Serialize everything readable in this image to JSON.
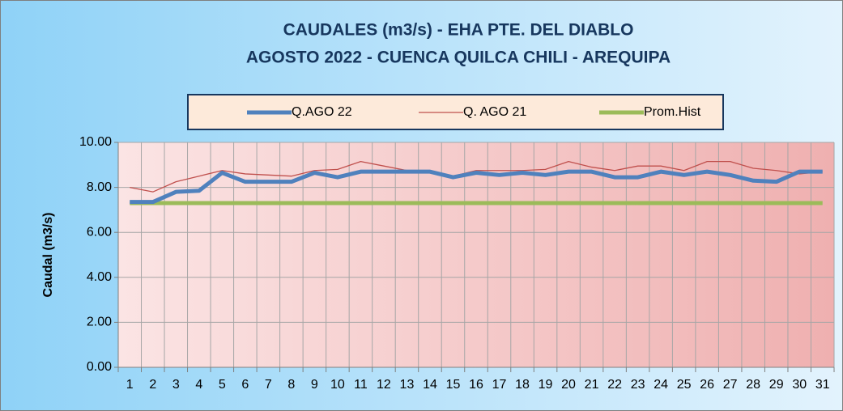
{
  "chart_data": {
    "type": "line",
    "title": "CAUDALES (m3/s) - EHA PTE. DEL DIABLO",
    "subtitle": "AGOSTO 2022 -  CUENCA QUILCA CHILI - AREQUIPA",
    "y_label": "Caudal  (m3/s)",
    "categories": [
      "1",
      "2",
      "3",
      "4",
      "5",
      "6",
      "7",
      "8",
      "9",
      "10",
      "11",
      "12",
      "13",
      "14",
      "15",
      "16",
      "17",
      "18",
      "19",
      "20",
      "21",
      "22",
      "23",
      "24",
      "25",
      "26",
      "27",
      "28",
      "29",
      "30",
      "31"
    ],
    "series": [
      {
        "name": "Q.AGO 22",
        "color": "#4f81bd",
        "width": 5,
        "values": [
          7.35,
          7.35,
          7.8,
          7.85,
          8.65,
          8.25,
          8.25,
          8.25,
          8.65,
          8.45,
          8.7,
          8.7,
          8.7,
          8.7,
          8.45,
          8.65,
          8.55,
          8.65,
          8.55,
          8.7,
          8.7,
          8.45,
          8.45,
          8.7,
          8.55,
          8.7,
          8.55,
          8.3,
          8.25,
          8.7,
          8.7
        ]
      },
      {
        "name": "Q. AGO 21",
        "color": "#c0504d",
        "width": 1.3,
        "values": [
          8.0,
          7.8,
          8.25,
          8.5,
          8.75,
          8.6,
          8.55,
          8.5,
          8.75,
          8.8,
          9.15,
          8.95,
          8.75,
          8.65,
          8.5,
          8.75,
          8.75,
          8.75,
          8.8,
          9.15,
          8.9,
          8.75,
          8.95,
          8.95,
          8.75,
          9.15,
          9.15,
          8.85,
          8.75,
          8.6,
          8.7
        ]
      },
      {
        "name": "Prom.Hist",
        "color": "#9bbb59",
        "width": 5,
        "values": [
          7.3,
          7.3,
          7.3,
          7.3,
          7.3,
          7.3,
          7.3,
          7.3,
          7.3,
          7.3,
          7.3,
          7.3,
          7.3,
          7.3,
          7.3,
          7.3,
          7.3,
          7.3,
          7.3,
          7.3,
          7.3,
          7.3,
          7.3,
          7.3,
          7.3,
          7.3,
          7.3,
          7.3,
          7.3,
          7.3,
          7.3
        ]
      }
    ],
    "ylim": [
      0,
      10
    ],
    "yticks": [
      {
        "value": 0,
        "label": "0.00"
      },
      {
        "value": 2,
        "label": "2.00"
      },
      {
        "value": 4,
        "label": "4.00"
      },
      {
        "value": 6,
        "label": "6.00"
      },
      {
        "value": 8,
        "label": "8.00"
      },
      {
        "value": 10,
        "label": "10.00"
      }
    ],
    "legend": "top",
    "grid": true
  }
}
